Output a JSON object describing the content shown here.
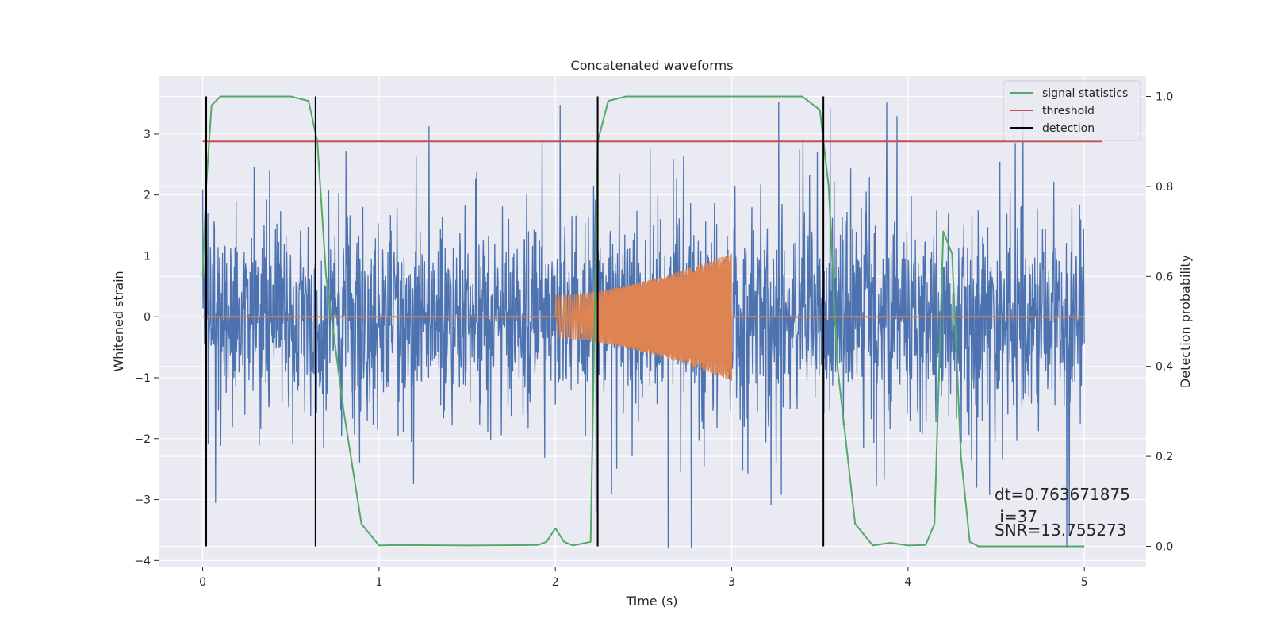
{
  "chart_data": {
    "type": "line",
    "title": "Concatenated waveforms",
    "xlabel": "Time (s)",
    "ylabel": "Whitened strain",
    "ylabel_right": "Detection probability",
    "xlim": [
      -0.25,
      5.35
    ],
    "ylim": [
      -4.1,
      3.95
    ],
    "ylim_right": [
      -0.045,
      1.045
    ],
    "x_ticks": [
      "0",
      "1",
      "2",
      "3",
      "4",
      "5"
    ],
    "y_ticks": [
      "−4",
      "−3",
      "−2",
      "−1",
      "0",
      "1",
      "2",
      "3"
    ],
    "y_ticks_right": [
      "0.0",
      "0.2",
      "0.4",
      "0.6",
      "0.8",
      "1.0"
    ],
    "grid": true,
    "legend_position": "top-right",
    "colors": {
      "strain": "#4c72b0",
      "injected": "#dd8452",
      "signal_statistics": "#55a868",
      "threshold": "#c44e52",
      "detection": "#000000",
      "plot_bg": "#eaeaf2",
      "grid": "#ffffff"
    },
    "series": [
      {
        "name": "signal statistics",
        "axis": "right",
        "x": [
          0.0,
          0.02,
          0.05,
          0.1,
          0.5,
          0.6,
          0.65,
          0.7,
          0.8,
          0.9,
          1.0,
          1.1,
          1.5,
          1.9,
          1.95,
          2.0,
          2.05,
          2.1,
          2.2,
          2.24,
          2.3,
          2.4,
          3.4,
          3.5,
          3.55,
          3.6,
          3.7,
          3.8,
          3.9,
          4.0,
          4.1,
          4.15,
          4.2,
          4.25,
          4.3,
          4.35,
          4.4,
          5.0
        ],
        "values": [
          0.6,
          0.8,
          0.98,
          1.0,
          1.0,
          0.99,
          0.9,
          0.6,
          0.3,
          0.05,
          0.002,
          0.003,
          0.002,
          0.003,
          0.01,
          0.04,
          0.01,
          0.002,
          0.01,
          0.9,
          0.99,
          1.0,
          1.0,
          0.97,
          0.8,
          0.4,
          0.05,
          0.002,
          0.008,
          0.002,
          0.003,
          0.05,
          0.7,
          0.65,
          0.2,
          0.01,
          0.0,
          0.0
        ]
      },
      {
        "name": "threshold",
        "axis": "right",
        "x": [
          0.0,
          5.1
        ],
        "values": [
          0.9,
          0.9
        ]
      },
      {
        "name": "detection",
        "axis": "right",
        "type": "vlines",
        "x": [
          0.02,
          0.64,
          2.24,
          3.52
        ],
        "ymin": 0.0,
        "ymax": 1.0
      }
    ],
    "strain": {
      "axis": "left",
      "x_range": [
        0.0,
        5.0
      ],
      "noise_amplitude": 1.3
    },
    "injected_waveform": {
      "axis": "left",
      "x_range": [
        2.0,
        3.0
      ],
      "amplitude_start": 0.35,
      "amplitude_end": 1.05
    },
    "legend": [
      "signal statistics",
      "threshold",
      "detection"
    ],
    "annotations": [
      "dt=0.763671875",
      " i=37",
      "SNR=13.755273"
    ]
  }
}
